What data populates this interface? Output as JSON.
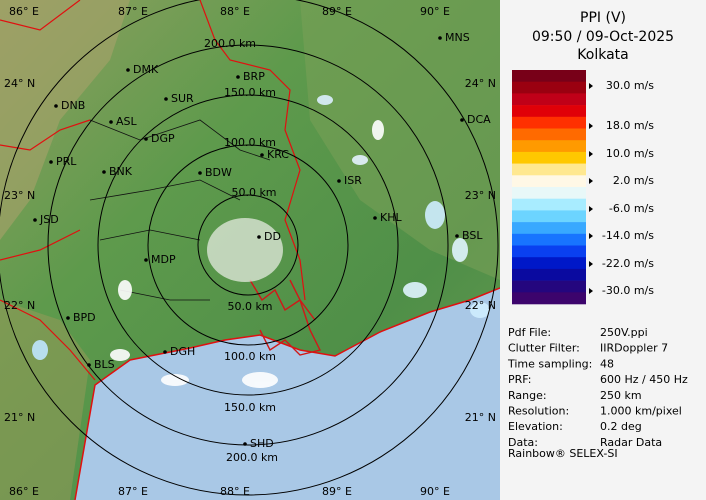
{
  "map": {
    "longitude_labels": [
      "86° E",
      "87° E",
      "88° E",
      "89° E",
      "90° E"
    ],
    "latitude_labels": [
      "24° N",
      "23° N",
      "22° N",
      "21° N"
    ],
    "range_labels": [
      "200.0 km",
      "150.0 km",
      "100.0 km",
      "50.0 km",
      "50.0 km",
      "100.0 km",
      "150.0 km",
      "200.0 km"
    ],
    "cities": [
      "MNS",
      "DMK",
      "BRP",
      "SUR",
      "DNB",
      "ASL",
      "DGP",
      "DCA",
      "KRC",
      "PRL",
      "BNK",
      "BDW",
      "ISR",
      "KHL",
      "JSD",
      "BSL",
      "DD",
      "MDP",
      "BPD",
      "BLS",
      "DGH",
      "SHD"
    ]
  },
  "legend": {
    "title": "PPI (V)",
    "time": "09:50 / 09-Oct-2025",
    "site": "Kolkata",
    "labels": [
      "30.0 m/s",
      "18.0 m/s",
      "10.0 m/s",
      "2.0 m/s",
      "-6.0 m/s",
      "-14.0 m/s",
      "-22.0 m/s",
      "-30.0 m/s"
    ],
    "colors": [
      "#780018",
      "#9a0010",
      "#c00018",
      "#e00008",
      "#ff3000",
      "#ff6a00",
      "#ff9a00",
      "#ffc800",
      "#ffe890",
      "#fff8e6",
      "#e8f8f8",
      "#a8ecff",
      "#6cd4ff",
      "#38a8ff",
      "#1874ff",
      "#0a40f0",
      "#0018c8",
      "#0a0aa0",
      "#24067e",
      "#3c046c"
    ]
  },
  "info": {
    "rows": [
      [
        "Pdf File:",
        "250V.ppi"
      ],
      [
        "Clutter Filter:",
        "IIRDoppler 7"
      ],
      [
        "Time sampling:",
        "48"
      ],
      [
        "PRF:",
        "600 Hz / 450 Hz"
      ],
      [
        "Range:",
        "250 km"
      ],
      [
        "Resolution:",
        "1.000 km/pixel"
      ],
      [
        "Elevation:",
        "0.2 deg"
      ],
      [
        "Data:",
        "Radar Data"
      ]
    ]
  },
  "footer": "Rainbow® SELEX-SI"
}
